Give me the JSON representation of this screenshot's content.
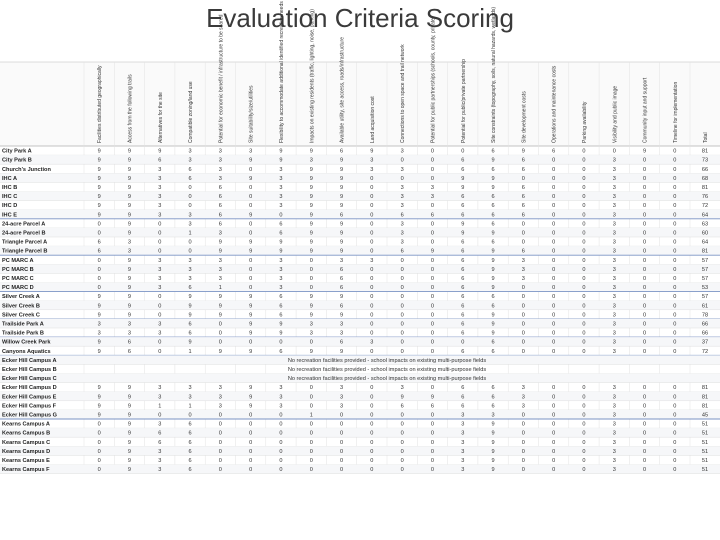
{
  "header": {
    "title": "Evaluation Criteria Scoring"
  },
  "table": {
    "columns": [
      "Facilities distributed geographically",
      "Access from the following trails",
      "Alternatives for the site",
      "Compatible zoning/land use",
      "Potential for economic benefit / infrastructure to be shared",
      "Site suitability/size/utilities",
      "Flexibility to accommodate additional identified recreation needs (natural, indoor and outdoor)",
      "Impacts on existing residents (traffic, lighting, noise, parking)",
      "Available utility, site access, roads/infrastructure",
      "Land acquisition cost",
      "Connections to open space and trail network",
      "Potential for public partnerships (schools, county, private)",
      "Potential for public/private partnership",
      "Site constraints (topography, soils, natural hazards, wetlands)",
      "Site development costs",
      "Operations and maintenance costs",
      "Parking availability",
      "Visibility and public image",
      "Community input and support",
      "Timeline for implementation",
      "Total"
    ],
    "rows": [
      {
        "label": "City Park A",
        "cells": [
          9,
          9,
          9,
          3,
          3,
          3,
          9,
          9,
          6,
          9,
          3,
          0,
          0,
          6,
          9,
          6,
          0,
          0,
          9,
          0
        ],
        "total": 81
      },
      {
        "label": "City Park B",
        "cells": [
          9,
          9,
          6,
          3,
          3,
          9,
          9,
          3,
          9,
          3,
          0,
          0,
          6,
          9,
          6,
          0,
          0,
          3,
          0,
          0
        ],
        "total": 73
      },
      {
        "label": "Church's Junction",
        "cells": [
          9,
          9,
          3,
          6,
          3,
          0,
          3,
          9,
          9,
          3,
          3,
          0,
          6,
          6,
          6,
          0,
          0,
          3,
          0,
          0
        ],
        "total": 66
      },
      {
        "label": "IHC A",
        "cells": [
          9,
          9,
          3,
          6,
          3,
          9,
          3,
          9,
          9,
          0,
          0,
          0,
          9,
          9,
          0,
          0,
          0,
          3,
          0,
          0
        ],
        "total": 68
      },
      {
        "label": "IHC B",
        "cells": [
          9,
          9,
          3,
          0,
          6,
          0,
          3,
          9,
          9,
          0,
          3,
          3,
          9,
          9,
          6,
          0,
          0,
          3,
          0,
          0
        ],
        "total": 81
      },
      {
        "label": "IHC C",
        "cells": [
          9,
          9,
          3,
          0,
          6,
          0,
          3,
          9,
          9,
          0,
          3,
          3,
          6,
          6,
          6,
          0,
          0,
          3,
          0,
          0
        ],
        "total": 76
      },
      {
        "label": "IHC D",
        "cells": [
          9,
          9,
          3,
          0,
          6,
          0,
          3,
          9,
          9,
          0,
          3,
          0,
          6,
          6,
          6,
          0,
          0,
          3,
          0,
          0
        ],
        "total": 72
      },
      {
        "label": "IHC E",
        "cells": [
          9,
          9,
          3,
          3,
          6,
          9,
          0,
          9,
          6,
          0,
          6,
          6,
          6,
          6,
          6,
          0,
          0,
          3,
          0,
          0
        ],
        "total": 64
      },
      {
        "label": "24-acre Parcel A",
        "cells": [
          0,
          9,
          0,
          3,
          6,
          0,
          6,
          9,
          9,
          0,
          3,
          0,
          9,
          6,
          0,
          0,
          0,
          3,
          0,
          0
        ],
        "total": 63
      },
      {
        "label": "24-acre Parcel B",
        "cells": [
          0,
          9,
          0,
          1,
          3,
          0,
          6,
          9,
          9,
          0,
          3,
          0,
          9,
          9,
          0,
          0,
          0,
          3,
          0,
          0
        ],
        "total": 60
      },
      {
        "label": "Triangle Parcel A",
        "cells": [
          6,
          3,
          0,
          0,
          9,
          9,
          9,
          9,
          9,
          0,
          3,
          0,
          6,
          6,
          0,
          0,
          0,
          3,
          0,
          0
        ],
        "total": 64
      },
      {
        "label": "Triangle Parcel B",
        "cells": [
          6,
          3,
          0,
          0,
          9,
          9,
          9,
          9,
          9,
          0,
          6,
          9,
          6,
          9,
          6,
          0,
          0,
          3,
          0,
          0
        ],
        "total": 81
      },
      {
        "label": "PC MARC A",
        "cells": [
          0,
          9,
          3,
          3,
          3,
          0,
          3,
          0,
          3,
          3,
          0,
          0,
          6,
          9,
          3,
          0,
          0,
          3,
          0,
          0
        ],
        "total": 57
      },
      {
        "label": "PC MARC B",
        "cells": [
          0,
          9,
          3,
          3,
          3,
          0,
          3,
          0,
          6,
          0,
          0,
          0,
          6,
          9,
          3,
          0,
          0,
          3,
          0,
          0
        ],
        "total": 57
      },
      {
        "label": "PC MARC C",
        "cells": [
          0,
          9,
          3,
          3,
          3,
          0,
          3,
          0,
          6,
          0,
          0,
          0,
          6,
          9,
          3,
          0,
          0,
          3,
          0,
          0
        ],
        "total": 57
      },
      {
        "label": "PC MARC D",
        "cells": [
          0,
          9,
          3,
          6,
          1,
          0,
          3,
          0,
          6,
          0,
          0,
          0,
          6,
          9,
          0,
          0,
          0,
          3,
          0,
          0
        ],
        "total": 53
      },
      {
        "label": "Silver Creek A",
        "cells": [
          9,
          9,
          0,
          9,
          9,
          9,
          6,
          9,
          9,
          0,
          0,
          0,
          6,
          6,
          0,
          0,
          0,
          3,
          0,
          0
        ],
        "total": 57
      },
      {
        "label": "Silver Creek B",
        "cells": [
          9,
          9,
          0,
          9,
          9,
          9,
          6,
          9,
          6,
          0,
          0,
          0,
          6,
          6,
          0,
          0,
          0,
          3,
          0,
          0
        ],
        "total": 61
      },
      {
        "label": "Silver Creek C",
        "cells": [
          9,
          9,
          0,
          9,
          9,
          9,
          6,
          9,
          9,
          0,
          0,
          0,
          6,
          9,
          0,
          0,
          0,
          3,
          0,
          0
        ],
        "total": 78
      },
      {
        "label": "Trailside Park A",
        "cells": [
          3,
          3,
          3,
          6,
          0,
          9,
          9,
          3,
          3,
          0,
          0,
          0,
          6,
          9,
          0,
          0,
          0,
          3,
          0,
          0
        ],
        "total": 66
      },
      {
        "label": "Trailside Park B",
        "cells": [
          3,
          3,
          3,
          6,
          0,
          9,
          9,
          3,
          3,
          0,
          0,
          0,
          6,
          9,
          0,
          0,
          0,
          3,
          0,
          0
        ],
        "total": 66
      },
      {
        "label": "Willow Creek Park",
        "cells": [
          9,
          6,
          0,
          9,
          0,
          0,
          0,
          0,
          6,
          3,
          0,
          0,
          0,
          6,
          0,
          0,
          0,
          3,
          0,
          0
        ],
        "total": 37
      },
      {
        "label": "Canyons Aquatics",
        "cells": [
          9,
          6,
          0,
          1,
          9,
          9,
          6,
          9,
          9,
          0,
          0,
          0,
          6,
          6,
          0,
          0,
          0,
          3,
          0,
          0
        ],
        "total": 72
      },
      {
        "label": "Ecker Hill Campus A",
        "note": "No recreation facilities provided - school impacts on existing multi-purpose fields"
      },
      {
        "label": "Ecker Hill Campus B",
        "note": "No recreation facilities provided - school impacts on existing multi-purpose fields"
      },
      {
        "label": "Ecker Hill Campus C",
        "note": "No recreation facilities provided - school impacts on existing multi-purpose fields"
      },
      {
        "label": "Ecker Hill Campus D",
        "cells": [
          9,
          9,
          3,
          3,
          3,
          9,
          3,
          0,
          3,
          0,
          3,
          0,
          6,
          6,
          3,
          0,
          0,
          3,
          0,
          0
        ],
        "total": 81
      },
      {
        "label": "Ecker Hill Campus E",
        "cells": [
          9,
          9,
          3,
          3,
          3,
          9,
          3,
          0,
          3,
          0,
          9,
          9,
          6,
          6,
          3,
          0,
          0,
          3,
          0,
          0
        ],
        "total": 81
      },
      {
        "label": "Ecker Hill Campus F",
        "cells": [
          9,
          9,
          1,
          1,
          3,
          9,
          3,
          0,
          3,
          0,
          6,
          6,
          6,
          6,
          3,
          0,
          0,
          3,
          0,
          0
        ],
        "total": 81
      },
      {
        "label": "Ecker Hill Campus G",
        "cells": [
          9,
          9,
          0,
          0,
          0,
          0,
          0,
          1,
          0,
          0,
          0,
          0,
          3,
          3,
          0,
          0,
          0,
          3,
          0,
          0
        ],
        "total": 45
      },
      {
        "label": "Kearns Campus A",
        "cells": [
          0,
          9,
          3,
          6,
          0,
          0,
          0,
          0,
          0,
          0,
          0,
          0,
          3,
          9,
          0,
          0,
          0,
          3,
          0,
          0
        ],
        "total": 51
      },
      {
        "label": "Kearns Campus B",
        "cells": [
          0,
          9,
          6,
          6,
          0,
          0,
          0,
          0,
          0,
          0,
          0,
          0,
          3,
          9,
          0,
          0,
          0,
          3,
          0,
          0
        ],
        "total": 51
      },
      {
        "label": "Kearns Campus C",
        "cells": [
          0,
          9,
          6,
          6,
          0,
          0,
          0,
          0,
          0,
          0,
          0,
          0,
          3,
          9,
          0,
          0,
          0,
          3,
          0,
          0
        ],
        "total": 51
      },
      {
        "label": "Kearns Campus D",
        "cells": [
          0,
          9,
          3,
          6,
          0,
          0,
          0,
          0,
          0,
          0,
          0,
          0,
          3,
          9,
          0,
          0,
          0,
          3,
          0,
          0
        ],
        "total": 51
      },
      {
        "label": "Kearns Campus E",
        "cells": [
          0,
          9,
          3,
          6,
          0,
          0,
          0,
          0,
          0,
          0,
          0,
          0,
          3,
          9,
          0,
          0,
          0,
          3,
          0,
          0
        ],
        "total": 51
      },
      {
        "label": "Kearns Campus F",
        "cells": [
          0,
          9,
          3,
          6,
          0,
          0,
          0,
          0,
          0,
          0,
          0,
          0,
          3,
          9,
          0,
          0,
          0,
          3,
          0,
          0
        ],
        "total": 51
      }
    ]
  }
}
